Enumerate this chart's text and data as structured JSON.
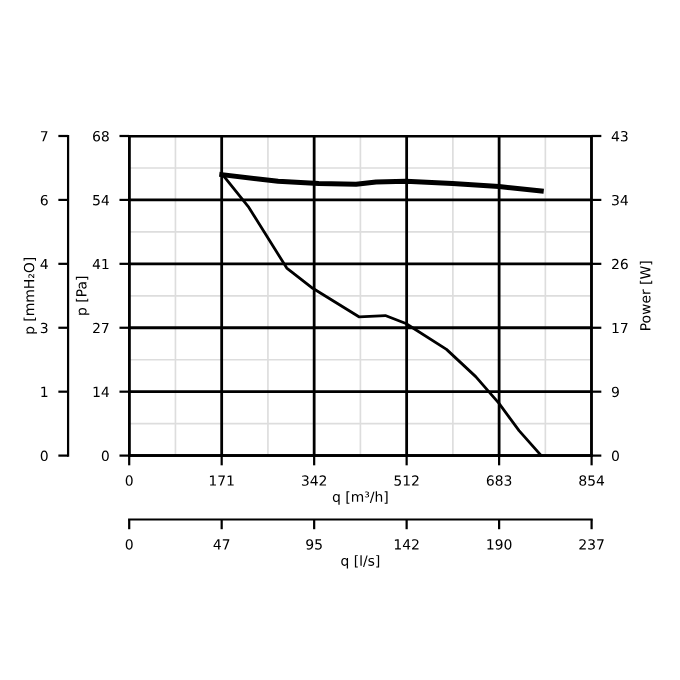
{
  "chart_data": {
    "type": "line",
    "xlabel": "q [m³/h]",
    "ylabel": "p [Pa]",
    "y2label": "Power [W]",
    "y3label": "p [mmH₂O]",
    "x2label": "q [l/s]",
    "xlim": [
      0,
      854
    ],
    "xticks": [
      0,
      {
        "value": 170.8,
        "label": "171"
      },
      {
        "value": 341.6,
        "label": "342"
      },
      {
        "value": 512.4,
        "label": "512"
      },
      {
        "value": 683.2,
        "label": "683"
      },
      854
    ],
    "ylim": [
      0,
      68
    ],
    "yticks": [
      0,
      {
        "value": 13.6,
        "label": "14"
      },
      {
        "value": 27.2,
        "label": "27"
      },
      {
        "value": 40.8,
        "label": "41"
      },
      {
        "value": 54.4,
        "label": "54"
      },
      68
    ],
    "y2lim": [
      0,
      43
    ],
    "y2ticks": [
      0,
      {
        "value": 8.6,
        "label": "9"
      },
      {
        "value": 17.2,
        "label": "17"
      },
      {
        "value": 25.8,
        "label": "26"
      },
      {
        "value": 34.4,
        "label": "34"
      },
      43
    ],
    "y3lim": [
      0,
      7
    ],
    "y3ticks": [
      0,
      {
        "value": 1.4,
        "label": "1"
      },
      {
        "value": 2.8,
        "label": "3"
      },
      {
        "value": 4.2,
        "label": "4"
      },
      {
        "value": 5.6,
        "label": "6"
      },
      7
    ],
    "x2lim": [
      0,
      237
    ],
    "x2ticks": [
      0,
      {
        "value": 47.4,
        "label": "47"
      },
      {
        "value": 94.8,
        "label": "95"
      },
      {
        "value": 142.2,
        "label": "142"
      },
      {
        "value": 189.6,
        "label": "190"
      },
      237
    ],
    "grid": true,
    "marker": "none",
    "line_style": "solid",
    "series": [
      {
        "color": "#000000",
        "x": [
          171,
          221,
          291,
          339,
          425,
          473,
          511,
          586,
          640,
          683,
          720,
          761
        ],
        "values": [
          60,
          52.8,
          39.9,
          35.6,
          29.5,
          29.8,
          28.1,
          22.6,
          16.8,
          11.1,
          5.3,
          0
        ]
      },
      {
        "color": "#000000",
        "axis": "y2",
        "x": [
          171,
          275,
          350,
          419,
          456,
          511,
          597,
          683,
          761
        ],
        "values": [
          37.8,
          36.9,
          36.6,
          36.5,
          36.8,
          36.9,
          36.6,
          36.2,
          35.6
        ]
      }
    ]
  }
}
